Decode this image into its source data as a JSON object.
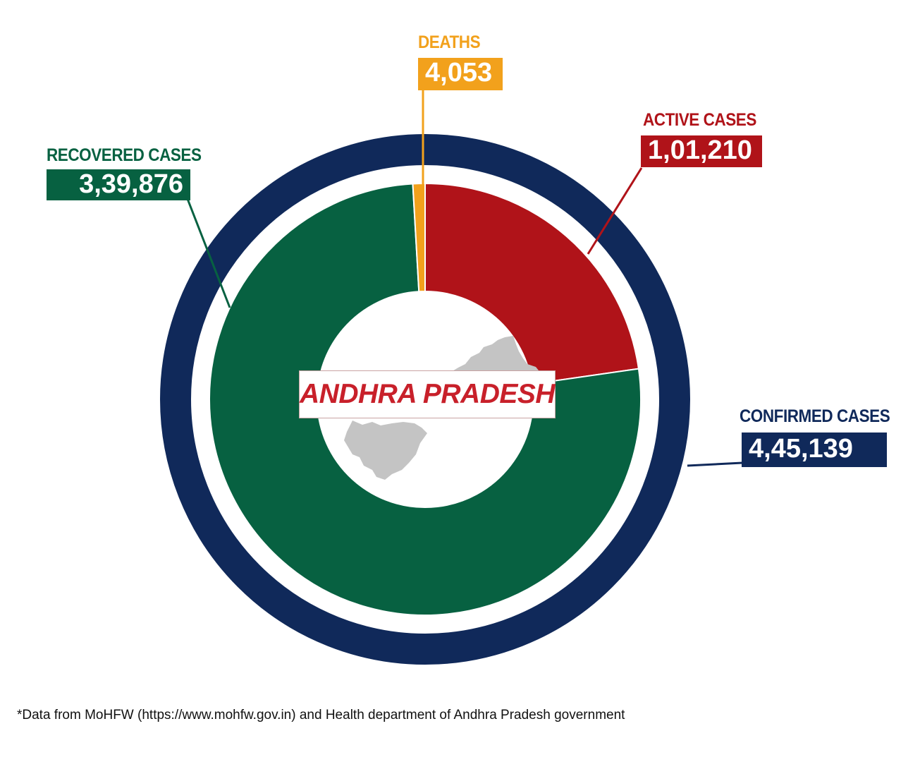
{
  "chart_data": {
    "type": "donut",
    "center_label": "ANDHRA PRADESH",
    "outer_ring": {
      "name": "CONFIRMED CASES",
      "value": 445139,
      "display": "4,45,139",
      "color": "#10295a"
    },
    "slices": [
      {
        "name": "ACTIVE CASES",
        "value": 101210,
        "display": "1,01,210",
        "color": "#b01319"
      },
      {
        "name": "RECOVERED CASES",
        "value": 339876,
        "display": "3,39,876",
        "color": "#076141"
      },
      {
        "name": "DEATHS",
        "value": 4053,
        "display": "4,053",
        "color": "#f2a11c"
      }
    ]
  },
  "labels": {
    "confirmed_label": "CONFIRMED CASES",
    "confirmed_value": "4,45,139",
    "active_label": "ACTIVE CASES",
    "active_value": "1,01,210",
    "recovered_label": "RECOVERED CASES",
    "recovered_value": "3,39,876",
    "deaths_label": "DEATHS",
    "deaths_value": "4,053",
    "state_name": "ANDHRA PRADESH"
  },
  "map_color": "#c4c4c4",
  "footnote": "*Data from MoHFW (https://www.mohfw.gov.in) and Health department of Andhra Pradesh government"
}
